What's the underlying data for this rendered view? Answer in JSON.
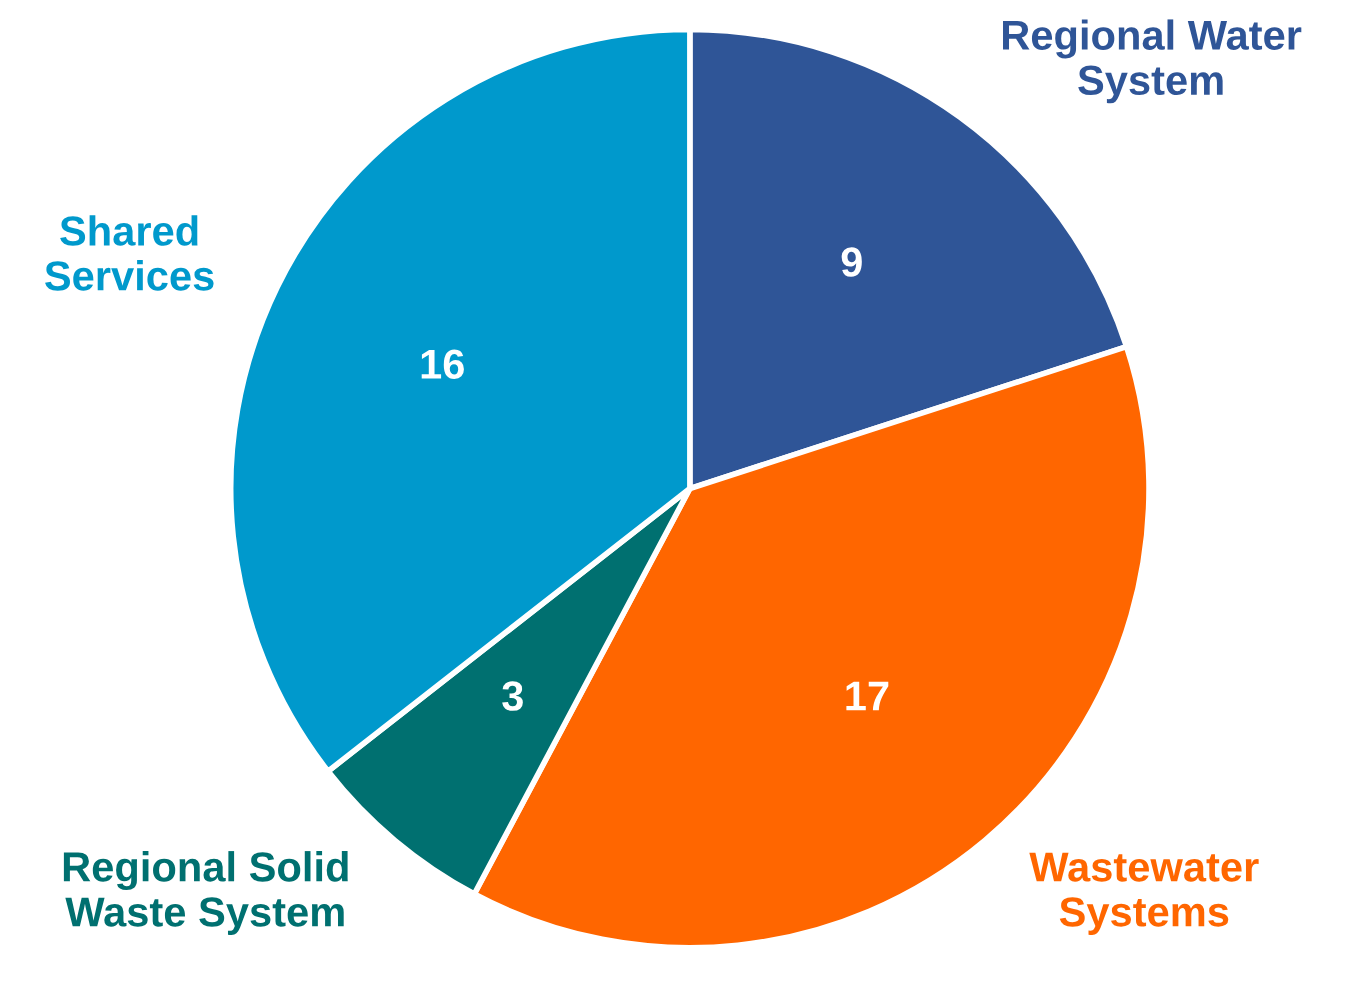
{
  "chart_data": {
    "type": "pie",
    "categories": [
      "Regional Water\nSystem",
      "Wastewater\nSystems",
      "Regional Solid\nWaste System",
      "Shared\nServices"
    ],
    "values": [
      9,
      17,
      3,
      16
    ],
    "colors": [
      "#2f5597",
      "#ff6600",
      "#007070",
      "#0099cc"
    ],
    "data_labels": true
  }
}
